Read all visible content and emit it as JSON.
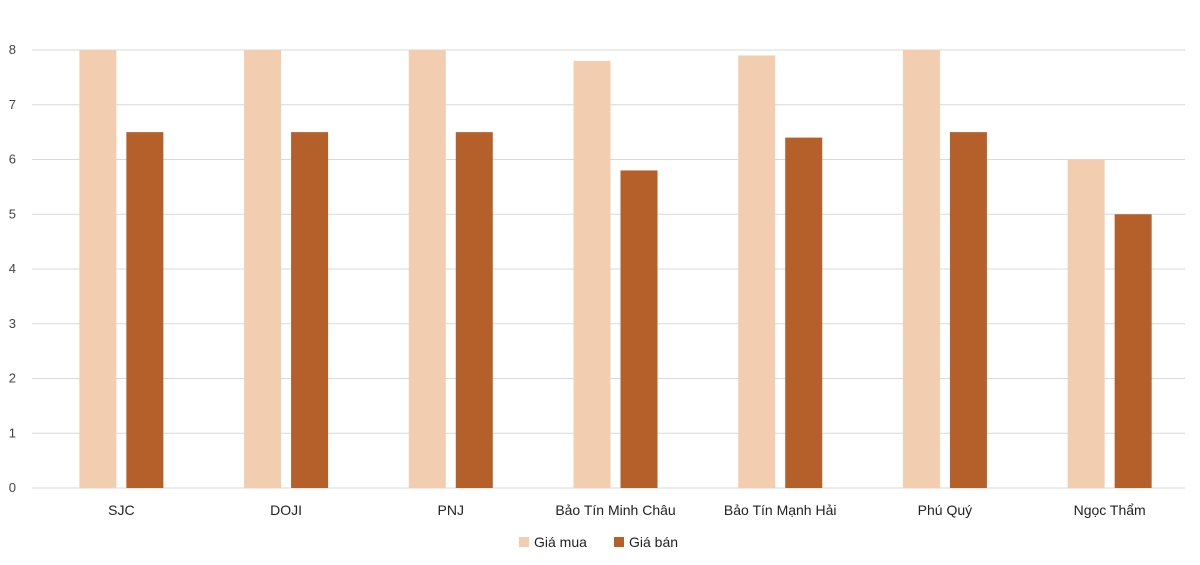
{
  "chart_data": {
    "type": "bar",
    "categories": [
      "SJC",
      "DOJI",
      "PNJ",
      "Bảo Tín Minh Châu",
      "Bảo Tín Mạnh Hải",
      "Phú Quý",
      "Ngọc Thẩm"
    ],
    "series": [
      {
        "name": "Giá mua",
        "color": "#F2CDB0",
        "values": [
          8,
          8,
          8,
          7.8,
          7.9,
          8,
          6
        ]
      },
      {
        "name": "Giá bán",
        "color": "#B5602A",
        "values": [
          6.5,
          6.5,
          6.5,
          5.8,
          6.4,
          6.5,
          5
        ]
      }
    ],
    "yticks": [
      "0",
      "1",
      "2",
      "3",
      "4",
      "5",
      "6",
      "7",
      "8"
    ],
    "ylim": [
      0,
      8
    ],
    "grid": true,
    "legend": "bottom-center",
    "colors": {
      "gridline": "#D9D9D9"
    }
  }
}
